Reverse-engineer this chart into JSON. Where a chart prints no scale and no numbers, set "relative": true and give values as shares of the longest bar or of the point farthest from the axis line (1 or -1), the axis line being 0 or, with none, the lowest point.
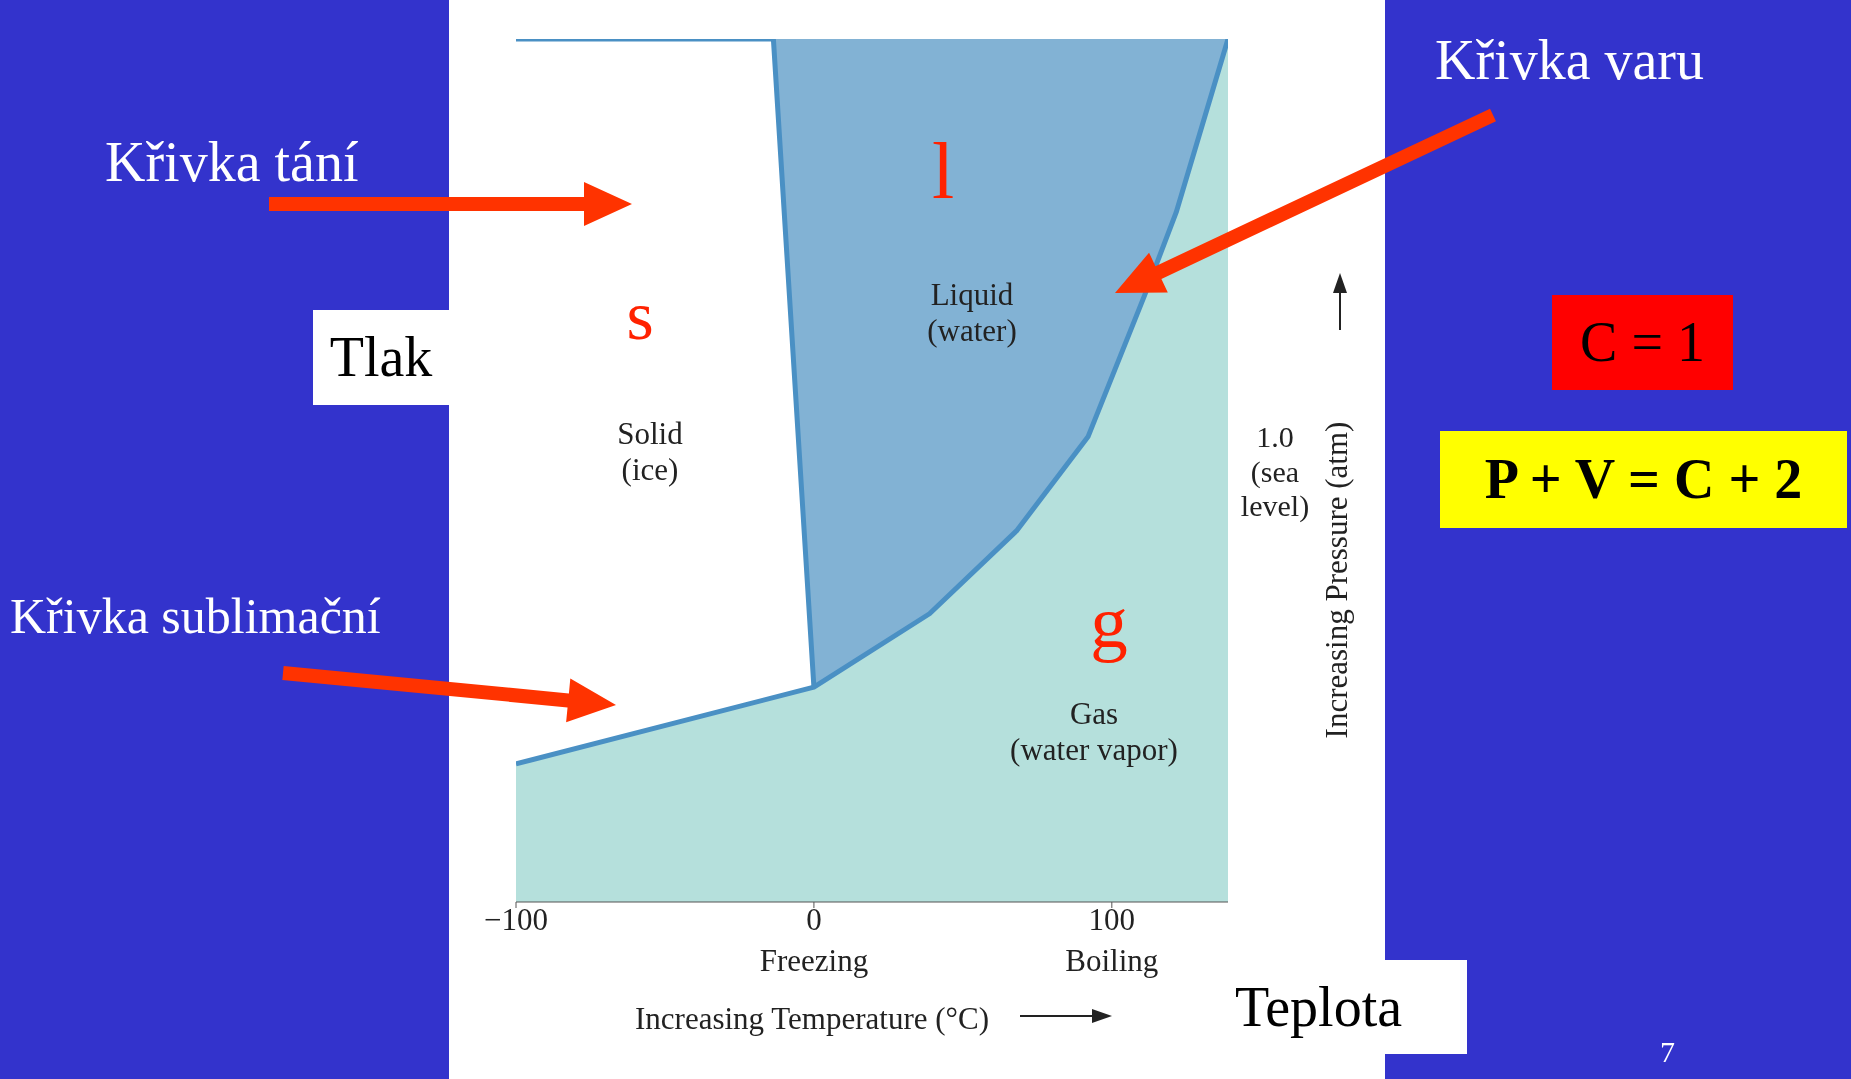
{
  "chart_data": {
    "type": "area",
    "relative": true,
    "xlabel": "Increasing Temperature (°C)",
    "ylabel": "Increasing Pressure (atm)",
    "xlim": [
      -100,
      139
    ],
    "xticks": [
      {
        "value": -100,
        "label": "−100"
      },
      {
        "value": 0,
        "label": "0\nFreezing"
      },
      {
        "value": 100,
        "label": "100\nBoiling"
      }
    ],
    "series": [
      {
        "color": "#82b2d4",
        "x": [
          -13.6,
          139
        ],
        "values": [
          1,
          1
        ]
      },
      {
        "color": "#ffffff",
        "x": [
          -100,
          -13.6,
          0
        ],
        "values": [
          1,
          1,
          0.249
        ]
      },
      {
        "color": "#b5e0dc",
        "x": [
          -100,
          0,
          38.8,
          68,
          92,
          111,
          121.6,
          139
        ],
        "values": [
          0.16,
          0.249,
          0.334,
          0.43,
          0.539,
          0.703,
          0.799,
          1
        ]
      }
    ],
    "annotations": [
      "s",
      "l",
      "g",
      "Solid\n(ice)",
      "Liquid\n(water)",
      "Gas\n(water vapor)",
      "1.0\n(sea\nlevel)",
      "Křivka tání",
      "Křivka varu",
      "Křivka sublimační",
      "Tlak",
      "Teplota",
      "C = 1",
      "P + V = C + 2",
      "7"
    ]
  }
}
